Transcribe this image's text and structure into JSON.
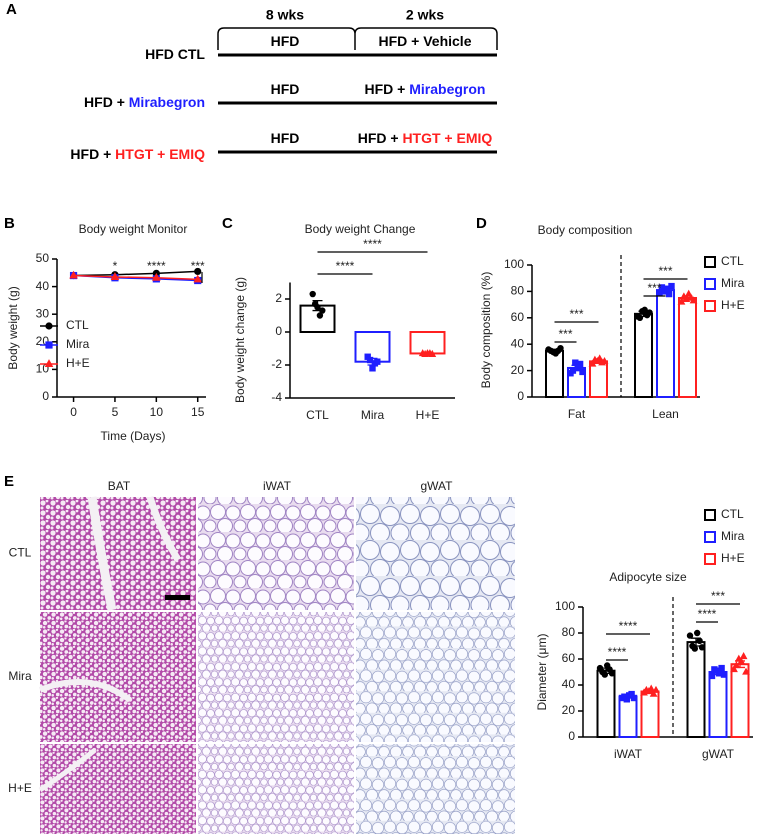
{
  "panels": [
    "A",
    "B",
    "C",
    "D",
    "E"
  ],
  "schematic": {
    "periods": [
      "8 wks",
      "2 wks"
    ],
    "groups": [
      {
        "name": [
          {
            "text": "HFD CTL",
            "color": "#000000"
          }
        ],
        "phase1": [
          {
            "text": "HFD",
            "color": "#000000"
          }
        ],
        "phase2": [
          {
            "text": "HFD + Vehicle",
            "color": "#000000"
          }
        ]
      },
      {
        "name": [
          {
            "text": "HFD + ",
            "color": "#000000"
          },
          {
            "text": "Mirabegron",
            "color": "#1f1fff"
          }
        ],
        "phase1": [
          {
            "text": "HFD",
            "color": "#000000"
          }
        ],
        "phase2": [
          {
            "text": "HFD + ",
            "color": "#000000"
          },
          {
            "text": "Mirabegron",
            "color": "#1f1fff"
          }
        ]
      },
      {
        "name": [
          {
            "text": "HFD + ",
            "color": "#000000"
          },
          {
            "text": "HTGT + EMIQ",
            "color": "#ff2020"
          }
        ],
        "phase1": [
          {
            "text": "HFD",
            "color": "#000000"
          }
        ],
        "phase2": [
          {
            "text": "HFD + ",
            "color": "#000000"
          },
          {
            "text": "HTGT + EMIQ",
            "color": "#ff2020"
          }
        ]
      }
    ]
  },
  "histology": {
    "columns": [
      "BAT",
      "iWAT",
      "gWAT"
    ],
    "rows": [
      "CTL",
      "Mira",
      "H+E"
    ]
  },
  "chart_data": [
    {
      "type": "line",
      "title": "Body weight Monitor",
      "xlabel": "Time (Days)",
      "ylabel": "Body weight (g)",
      "x": [
        0,
        5,
        10,
        15
      ],
      "xlim": [
        -2,
        16
      ],
      "xticks": [
        0,
        5,
        10,
        15
      ],
      "ylim": [
        0,
        50
      ],
      "yticks": [
        0,
        10,
        20,
        30,
        40,
        50
      ],
      "series": [
        {
          "name": "CTL",
          "color": "#000000",
          "marker": "circle",
          "values": [
            44,
            44.3,
            44.8,
            45.5
          ]
        },
        {
          "name": "Mira",
          "color": "#1f1fff",
          "marker": "square",
          "values": [
            44,
            43.2,
            42.8,
            42.2
          ]
        },
        {
          "name": "H+E",
          "color": "#ff2020",
          "marker": "triangle",
          "values": [
            44,
            43.5,
            43.2,
            42.6
          ]
        }
      ],
      "annotations": [
        "*",
        "****",
        "***"
      ]
    },
    {
      "type": "bar",
      "title": "Body weight Change",
      "ylabel": "Body weight change (g)",
      "categories": [
        "CTL",
        "Mira",
        "H+E"
      ],
      "colors": [
        "#000000",
        "#1f1fff",
        "#ff2020"
      ],
      "markers": [
        "circle",
        "square",
        "triangle"
      ],
      "values": [
        1.6,
        -1.8,
        -1.3
      ],
      "errors": [
        0.3,
        0.2,
        0.05
      ],
      "points": [
        [
          2.3,
          1.7,
          1.5,
          1.0,
          1.3
        ],
        [
          -1.5,
          -1.7,
          -2.2,
          -1.9,
          -1.8
        ],
        [
          -1.3,
          -1.35,
          -1.3,
          -1.3,
          -1.35
        ]
      ],
      "ylim": [
        -4,
        3
      ],
      "yticks": [
        -4,
        -2,
        0,
        2
      ],
      "annotations": [
        "****",
        "****"
      ]
    },
    {
      "type": "bar",
      "title": "Body composition",
      "ylabel": "Body composition (%)",
      "categories": [
        "Fat",
        "Lean"
      ],
      "ylim": [
        0,
        100
      ],
      "yticks": [
        0,
        20,
        40,
        60,
        80,
        100
      ],
      "series": [
        {
          "name": "CTL",
          "color": "#000000",
          "marker": "circle",
          "values": [
            35,
            63
          ],
          "errors": [
            1.2,
            2
          ],
          "points": [
            [
              36,
              35,
              34,
              33,
              35,
              37
            ],
            [
              61,
              60,
              65,
              66,
              62,
              64
            ]
          ]
        },
        {
          "name": "Mira",
          "color": "#1f1fff",
          "marker": "square",
          "values": [
            22,
            81
          ],
          "errors": [
            2,
            1.5
          ],
          "points": [
            [
              18,
              20,
              26,
              22,
              25,
              19
            ],
            [
              79,
              83,
              80,
              82,
              78,
              84
            ]
          ]
        },
        {
          "name": "H+E",
          "color": "#ff2020",
          "marker": "triangle",
          "values": [
            27,
            75
          ],
          "errors": [
            1,
            1.5
          ],
          "points": [
            [
              25,
              28,
              27,
              29,
              26,
              27
            ],
            [
              72,
              76,
              74,
              78,
              75,
              73
            ]
          ]
        }
      ],
      "annotations": [
        "***",
        "***",
        "***",
        "***"
      ]
    },
    {
      "type": "bar",
      "title": "Adipocyte size",
      "ylabel": "Diameter (μm)",
      "categories": [
        "iWAT",
        "gWAT"
      ],
      "ylim": [
        0,
        100
      ],
      "yticks": [
        0,
        20,
        40,
        60,
        80,
        100
      ],
      "series": [
        {
          "name": "CTL",
          "color": "#000000",
          "marker": "circle",
          "values": [
            51,
            73
          ],
          "errors": [
            2,
            3
          ],
          "points": [
            [
              53,
              50,
              48,
              55,
              52,
              49
            ],
            [
              78,
              70,
              68,
              80,
              74,
              69
            ]
          ]
        },
        {
          "name": "Mira",
          "color": "#1f1fff",
          "marker": "square",
          "values": [
            31,
            50
          ],
          "errors": [
            1,
            2
          ],
          "points": [
            [
              30,
              31,
              29,
              32,
              33,
              30
            ],
            [
              47,
              52,
              51,
              49,
              53,
              48
            ]
          ]
        },
        {
          "name": "H+E",
          "color": "#ff2020",
          "marker": "triangle",
          "values": [
            35,
            56
          ],
          "errors": [
            1,
            2.5
          ],
          "points": [
            [
              34,
              36,
              35,
              37,
              33,
              36
            ],
            [
              52,
              55,
              60,
              58,
              62,
              50
            ]
          ]
        }
      ],
      "annotations": [
        "****",
        "****",
        "****",
        "***"
      ]
    }
  ]
}
